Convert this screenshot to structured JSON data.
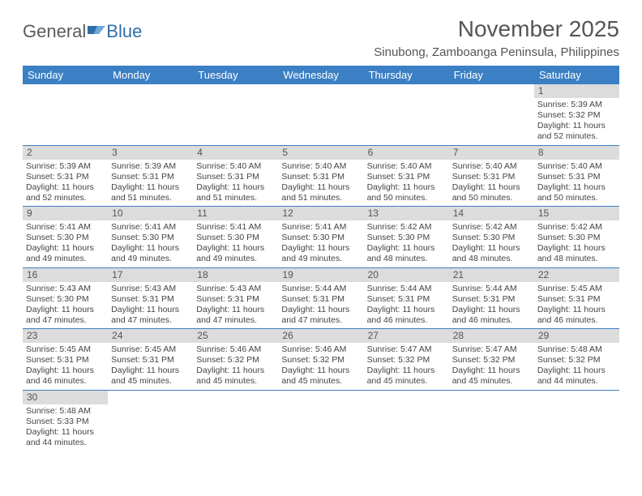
{
  "logo": {
    "text1": "General",
    "text2": "Blue"
  },
  "title": "November 2025",
  "subtitle": "Sinubong, Zamboanga Peninsula, Philippines",
  "colors": {
    "header_bg": "#3b7fc4",
    "header_text": "#ffffff",
    "daynum_bg": "#dcdcdc",
    "cell_border": "#3b7fc4",
    "page_text": "#555555"
  },
  "weekdays": [
    "Sunday",
    "Monday",
    "Tuesday",
    "Wednesday",
    "Thursday",
    "Friday",
    "Saturday"
  ],
  "weeks": [
    [
      null,
      null,
      null,
      null,
      null,
      null,
      {
        "n": "1",
        "sr": "5:39 AM",
        "ss": "5:32 PM",
        "dl": "11 hours and 52 minutes."
      }
    ],
    [
      {
        "n": "2",
        "sr": "5:39 AM",
        "ss": "5:31 PM",
        "dl": "11 hours and 52 minutes."
      },
      {
        "n": "3",
        "sr": "5:39 AM",
        "ss": "5:31 PM",
        "dl": "11 hours and 51 minutes."
      },
      {
        "n": "4",
        "sr": "5:40 AM",
        "ss": "5:31 PM",
        "dl": "11 hours and 51 minutes."
      },
      {
        "n": "5",
        "sr": "5:40 AM",
        "ss": "5:31 PM",
        "dl": "11 hours and 51 minutes."
      },
      {
        "n": "6",
        "sr": "5:40 AM",
        "ss": "5:31 PM",
        "dl": "11 hours and 50 minutes."
      },
      {
        "n": "7",
        "sr": "5:40 AM",
        "ss": "5:31 PM",
        "dl": "11 hours and 50 minutes."
      },
      {
        "n": "8",
        "sr": "5:40 AM",
        "ss": "5:31 PM",
        "dl": "11 hours and 50 minutes."
      }
    ],
    [
      {
        "n": "9",
        "sr": "5:41 AM",
        "ss": "5:30 PM",
        "dl": "11 hours and 49 minutes."
      },
      {
        "n": "10",
        "sr": "5:41 AM",
        "ss": "5:30 PM",
        "dl": "11 hours and 49 minutes."
      },
      {
        "n": "11",
        "sr": "5:41 AM",
        "ss": "5:30 PM",
        "dl": "11 hours and 49 minutes."
      },
      {
        "n": "12",
        "sr": "5:41 AM",
        "ss": "5:30 PM",
        "dl": "11 hours and 49 minutes."
      },
      {
        "n": "13",
        "sr": "5:42 AM",
        "ss": "5:30 PM",
        "dl": "11 hours and 48 minutes."
      },
      {
        "n": "14",
        "sr": "5:42 AM",
        "ss": "5:30 PM",
        "dl": "11 hours and 48 minutes."
      },
      {
        "n": "15",
        "sr": "5:42 AM",
        "ss": "5:30 PM",
        "dl": "11 hours and 48 minutes."
      }
    ],
    [
      {
        "n": "16",
        "sr": "5:43 AM",
        "ss": "5:30 PM",
        "dl": "11 hours and 47 minutes."
      },
      {
        "n": "17",
        "sr": "5:43 AM",
        "ss": "5:31 PM",
        "dl": "11 hours and 47 minutes."
      },
      {
        "n": "18",
        "sr": "5:43 AM",
        "ss": "5:31 PM",
        "dl": "11 hours and 47 minutes."
      },
      {
        "n": "19",
        "sr": "5:44 AM",
        "ss": "5:31 PM",
        "dl": "11 hours and 47 minutes."
      },
      {
        "n": "20",
        "sr": "5:44 AM",
        "ss": "5:31 PM",
        "dl": "11 hours and 46 minutes."
      },
      {
        "n": "21",
        "sr": "5:44 AM",
        "ss": "5:31 PM",
        "dl": "11 hours and 46 minutes."
      },
      {
        "n": "22",
        "sr": "5:45 AM",
        "ss": "5:31 PM",
        "dl": "11 hours and 46 minutes."
      }
    ],
    [
      {
        "n": "23",
        "sr": "5:45 AM",
        "ss": "5:31 PM",
        "dl": "11 hours and 46 minutes."
      },
      {
        "n": "24",
        "sr": "5:45 AM",
        "ss": "5:31 PM",
        "dl": "11 hours and 45 minutes."
      },
      {
        "n": "25",
        "sr": "5:46 AM",
        "ss": "5:32 PM",
        "dl": "11 hours and 45 minutes."
      },
      {
        "n": "26",
        "sr": "5:46 AM",
        "ss": "5:32 PM",
        "dl": "11 hours and 45 minutes."
      },
      {
        "n": "27",
        "sr": "5:47 AM",
        "ss": "5:32 PM",
        "dl": "11 hours and 45 minutes."
      },
      {
        "n": "28",
        "sr": "5:47 AM",
        "ss": "5:32 PM",
        "dl": "11 hours and 45 minutes."
      },
      {
        "n": "29",
        "sr": "5:48 AM",
        "ss": "5:32 PM",
        "dl": "11 hours and 44 minutes."
      }
    ],
    [
      {
        "n": "30",
        "sr": "5:48 AM",
        "ss": "5:33 PM",
        "dl": "11 hours and 44 minutes."
      },
      null,
      null,
      null,
      null,
      null,
      null
    ]
  ],
  "labels": {
    "sunrise": "Sunrise: ",
    "sunset": "Sunset: ",
    "daylight": "Daylight: "
  }
}
